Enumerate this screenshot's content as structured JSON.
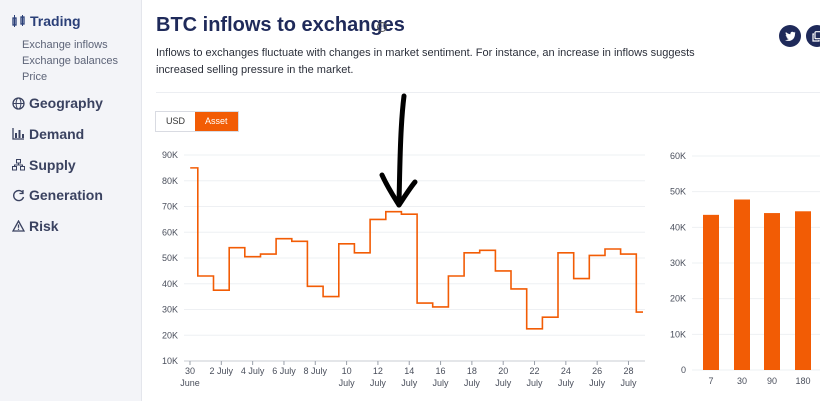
{
  "sidebar": {
    "sections": [
      {
        "label": "Trading",
        "icon": "trading-icon",
        "active": true
      },
      {
        "label": "Geography",
        "icon": "globe-icon"
      },
      {
        "label": "Demand",
        "icon": "bar-chart-icon"
      },
      {
        "label": "Supply",
        "icon": "network-icon"
      },
      {
        "label": "Generation",
        "icon": "refresh-icon"
      },
      {
        "label": "Risk",
        "icon": "warning-icon"
      }
    ],
    "sub_items": [
      "Exchange inflows",
      "Exchange balances",
      "Price"
    ]
  },
  "card": {
    "title": "BTC inflows to exchanges",
    "info_icon": "ⓘ",
    "description": "Inflows to exchanges fluctuate with changes in market sentiment. For instance, an increase in inflows suggests increased selling pressure in the market.",
    "share_icons": [
      "twitter-icon",
      "copy-icon"
    ]
  },
  "toggle": {
    "options": [
      "USD",
      "Asset"
    ],
    "selected": "Asset"
  },
  "accent_color": "#f25c05",
  "chart_data": [
    {
      "type": "line",
      "step": true,
      "x": [
        "30 June",
        "1 July",
        "2 July",
        "3 July",
        "4 July",
        "5 July",
        "6 July",
        "7 July",
        "8 July",
        "9 July",
        "10 July",
        "11 July",
        "12 July",
        "13 July",
        "14 July",
        "15 July",
        "16 July",
        "17 July",
        "18 July",
        "19 July",
        "20 July",
        "21 July",
        "22 July",
        "23 July",
        "24 July",
        "25 July",
        "26 July",
        "27 July",
        "28 July",
        "29 July"
      ],
      "values": [
        85000,
        43000,
        37500,
        54000,
        50500,
        51500,
        57500,
        56500,
        39000,
        35000,
        55500,
        52000,
        65000,
        68000,
        67000,
        32500,
        31000,
        43000,
        52000,
        53000,
        45000,
        38000,
        22500,
        27000,
        52000,
        42000,
        51000,
        53500,
        51500,
        29000
      ],
      "x_tick_labels": [
        [
          "30",
          "June"
        ],
        [
          "2 July"
        ],
        [
          "4 July"
        ],
        [
          "6 July"
        ],
        [
          "8 July"
        ],
        [
          "10",
          "July"
        ],
        [
          "12",
          "July"
        ],
        [
          "14",
          "July"
        ],
        [
          "16",
          "July"
        ],
        [
          "18",
          "July"
        ],
        [
          "20",
          "July"
        ],
        [
          "22",
          "July"
        ],
        [
          "24",
          "July"
        ],
        [
          "26",
          "July"
        ],
        [
          "28",
          "July"
        ]
      ],
      "y_ticks": [
        "10K",
        "20K",
        "30K",
        "40K",
        "50K",
        "60K",
        "70K",
        "80K",
        "90K"
      ],
      "ylim": [
        10000,
        90000
      ],
      "annotation": "hand-drawn arrow pointing at 13 July peak"
    },
    {
      "type": "bar",
      "categories": [
        "7",
        "30",
        "90",
        "180"
      ],
      "values": [
        43500,
        47800,
        44000,
        44500
      ],
      "y_ticks": [
        "0",
        "10K",
        "20K",
        "30K",
        "40K",
        "50K",
        "60K"
      ],
      "ylim": [
        0,
        60000
      ]
    }
  ]
}
